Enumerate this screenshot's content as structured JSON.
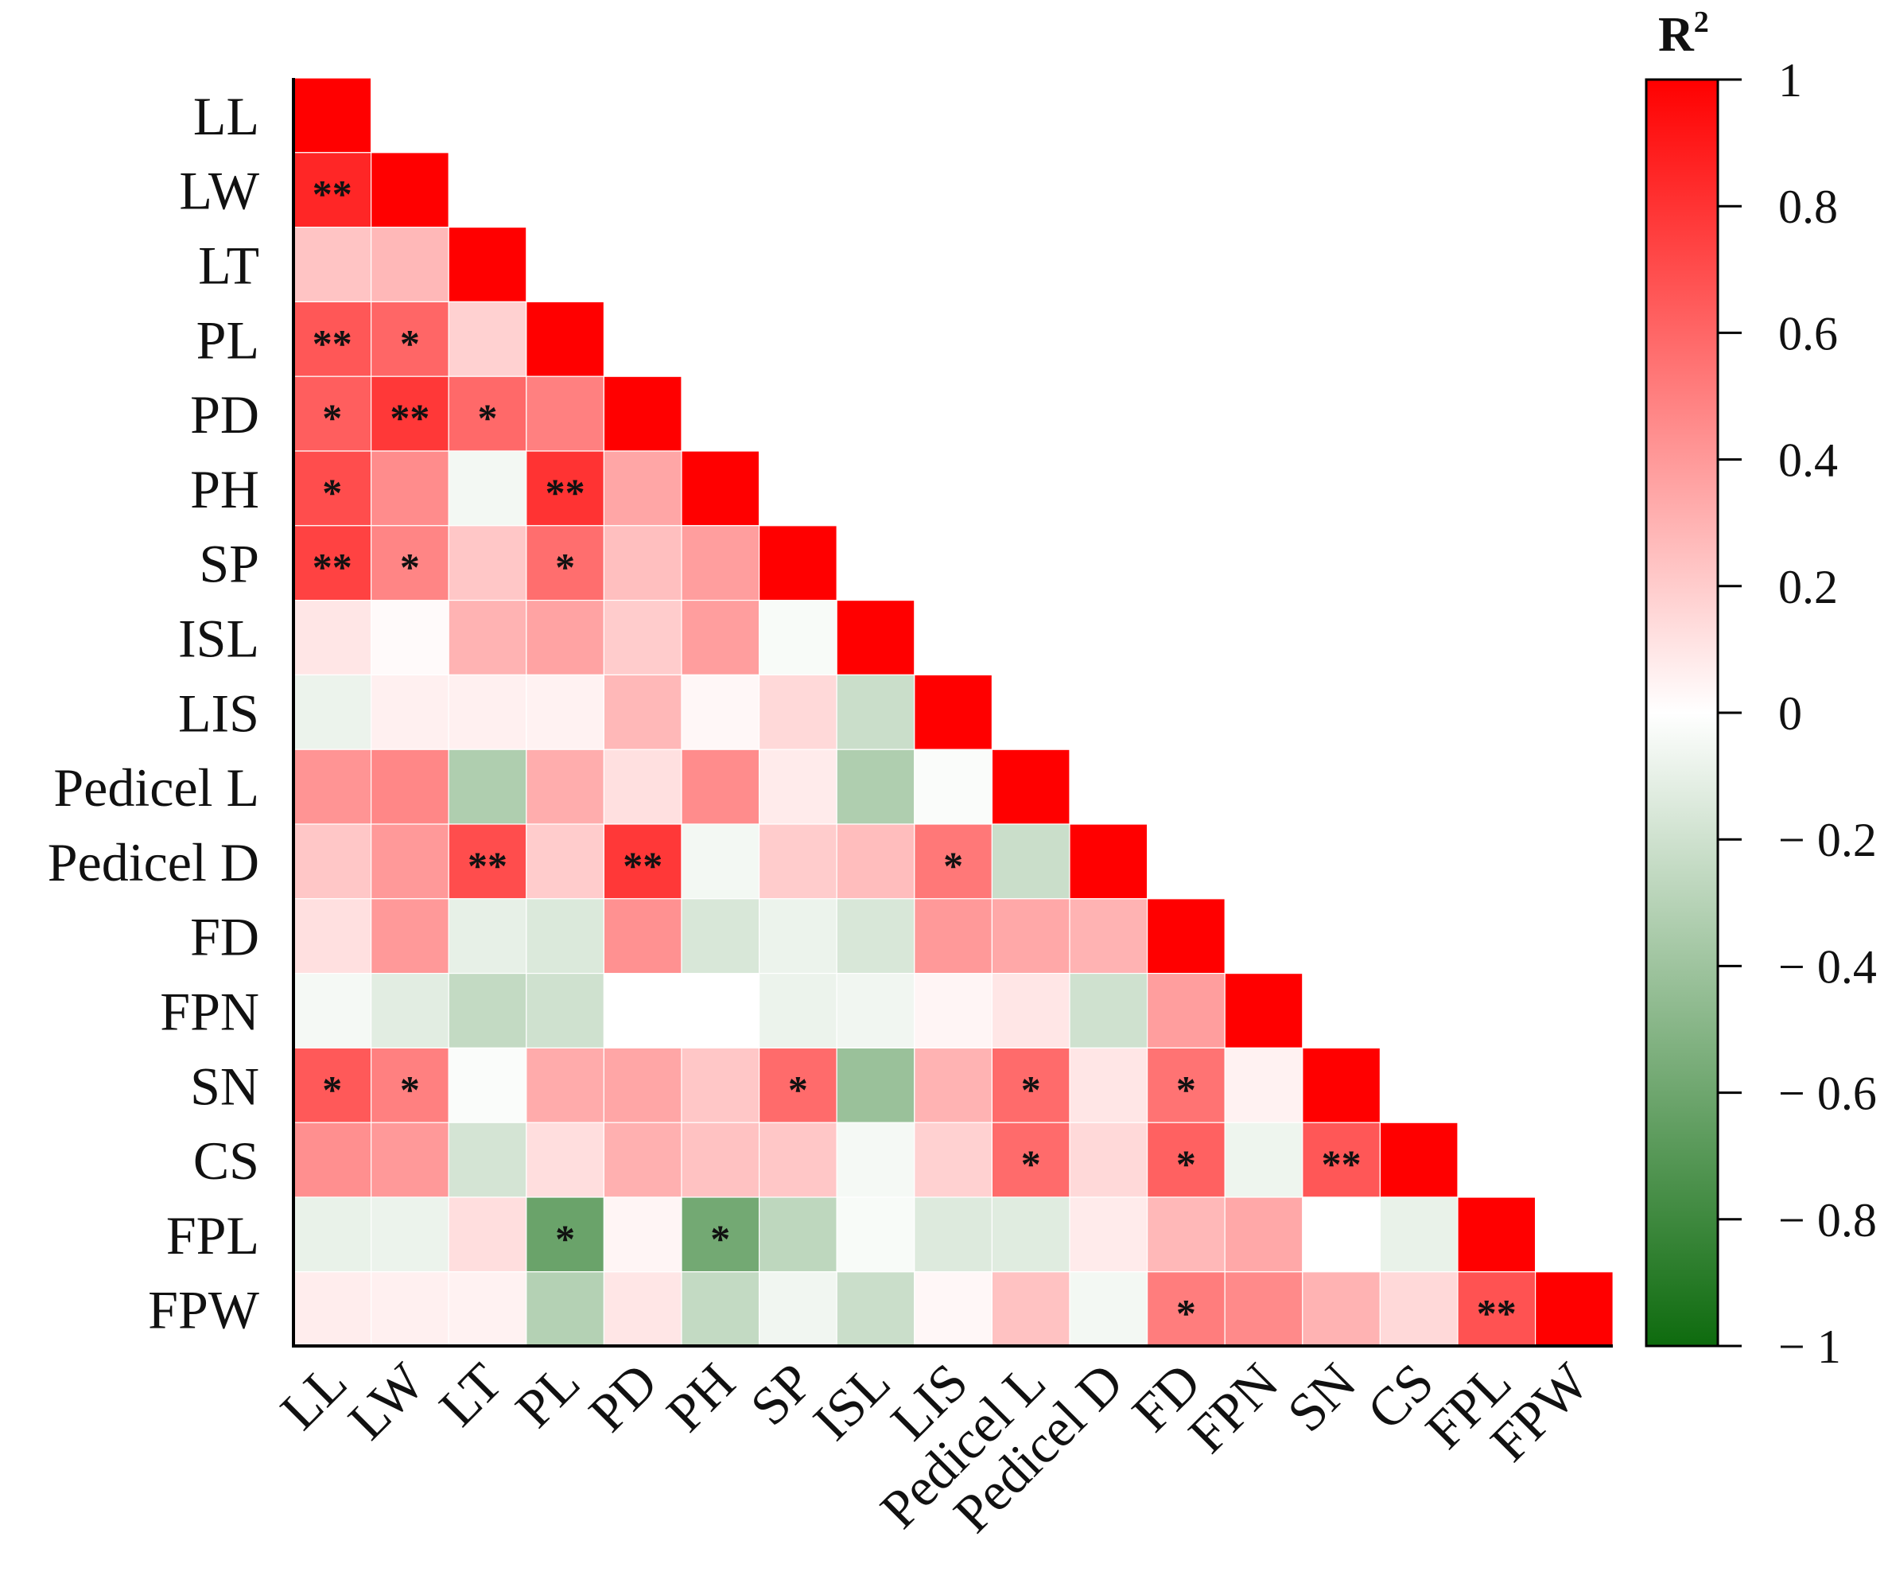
{
  "chart_data": {
    "type": "heatmap",
    "subtype": "lower-triangular correlation matrix",
    "variables": [
      "LL",
      "LW",
      "LT",
      "PL",
      "PD",
      "PH",
      "SP",
      "ISL",
      "LIS",
      "Pedicel L",
      "Pedicel D",
      "FD",
      "FPN",
      "SN",
      "CS",
      "FPL",
      "FPW"
    ],
    "values": [
      [
        1
      ],
      [
        0.85,
        1
      ],
      [
        0.23,
        0.28,
        1
      ],
      [
        0.66,
        0.6,
        0.18,
        1
      ],
      [
        0.63,
        0.78,
        0.59,
        0.5,
        1
      ],
      [
        0.7,
        0.45,
        -0.05,
        0.8,
        0.35,
        1
      ],
      [
        0.74,
        0.48,
        0.22,
        0.57,
        0.25,
        0.38,
        1
      ],
      [
        0.1,
        0.02,
        0.3,
        0.36,
        0.2,
        0.38,
        -0.03,
        1
      ],
      [
        -0.08,
        0.06,
        0.06,
        0.05,
        0.28,
        0.03,
        0.15,
        -0.22,
        1
      ],
      [
        0.42,
        0.47,
        -0.33,
        0.32,
        0.12,
        0.45,
        0.08,
        -0.33,
        -0.02,
        1
      ],
      [
        0.22,
        0.4,
        0.7,
        0.2,
        0.78,
        -0.05,
        0.2,
        0.26,
        0.53,
        -0.22,
        1
      ],
      [
        0.12,
        0.4,
        -0.1,
        -0.15,
        0.43,
        -0.16,
        -0.08,
        -0.16,
        0.4,
        0.34,
        0.3,
        1
      ],
      [
        -0.04,
        -0.12,
        -0.25,
        -0.2,
        0.0,
        0.0,
        -0.08,
        -0.06,
        0.04,
        0.1,
        -0.2,
        0.38,
        1
      ],
      [
        0.65,
        0.5,
        -0.02,
        0.33,
        0.35,
        0.22,
        0.58,
        -0.42,
        0.3,
        0.58,
        0.1,
        0.55,
        0.05,
        1
      ],
      [
        0.44,
        0.4,
        -0.18,
        0.13,
        0.31,
        0.24,
        0.22,
        -0.04,
        0.18,
        0.58,
        0.15,
        0.62,
        -0.07,
        0.66,
        1
      ],
      [
        -0.09,
        -0.08,
        0.13,
        -0.62,
        0.04,
        -0.58,
        -0.27,
        -0.03,
        -0.14,
        -0.13,
        0.08,
        0.28,
        0.34,
        0.0,
        -0.09,
        1
      ],
      [
        0.07,
        0.06,
        0.05,
        -0.31,
        0.1,
        -0.25,
        -0.06,
        -0.22,
        0.03,
        0.24,
        -0.05,
        0.51,
        0.46,
        0.3,
        0.15,
        0.68,
        1
      ]
    ],
    "significance": [
      [
        ""
      ],
      [
        "**",
        ""
      ],
      [
        "",
        "",
        ""
      ],
      [
        "**",
        "*",
        "",
        ""
      ],
      [
        "*",
        "**",
        "*",
        "",
        ""
      ],
      [
        "*",
        "",
        "",
        "**",
        "",
        ""
      ],
      [
        "**",
        "*",
        "",
        "*",
        "",
        "",
        ""
      ],
      [
        "",
        "",
        "",
        "",
        "",
        "",
        "",
        ""
      ],
      [
        "",
        "",
        "",
        "",
        "",
        "",
        "",
        "",
        ""
      ],
      [
        "",
        "",
        "",
        "",
        "",
        "",
        "",
        "",
        "",
        ""
      ],
      [
        "",
        "",
        "**",
        "",
        "**",
        "",
        "",
        "",
        "*",
        "",
        ""
      ],
      [
        "",
        "",
        "",
        "",
        "",
        "",
        "",
        "",
        "",
        "",
        "",
        ""
      ],
      [
        "",
        "",
        "",
        "",
        "",
        "",
        "",
        "",
        "",
        "",
        "",
        "",
        ""
      ],
      [
        "*",
        "*",
        "",
        "",
        "",
        "",
        "*",
        "",
        "",
        "*",
        "",
        "*",
        "",
        ""
      ],
      [
        "",
        "",
        "",
        "",
        "",
        "",
        "",
        "",
        "",
        "*",
        "",
        "*",
        "",
        "**",
        ""
      ],
      [
        "",
        "",
        "",
        "*",
        "",
        "*",
        "",
        "",
        "",
        "",
        "",
        "",
        "",
        "",
        "",
        ""
      ],
      [
        "",
        "",
        "",
        "",
        "",
        "",
        "",
        "",
        "",
        "",
        "",
        "*",
        "",
        "",
        "",
        "**",
        ""
      ]
    ],
    "colorbar": {
      "title": "R",
      "title_superscript": "2",
      "range": [
        -1,
        1
      ],
      "ticks": [
        1,
        0.8,
        0.6,
        0.4,
        0.2,
        0,
        -0.2,
        -0.4,
        -0.6,
        -0.8,
        -1
      ],
      "tick_labels": [
        "1",
        "0.8",
        "0.6",
        "0.4",
        "0.2",
        "0",
        "− 0.2",
        "− 0.4",
        "− 0.6",
        "− 0.8",
        "− 1"
      ],
      "colors": {
        "low": "#0e6b0e",
        "mid": "#ffffff",
        "high": "#ff0000"
      }
    }
  }
}
